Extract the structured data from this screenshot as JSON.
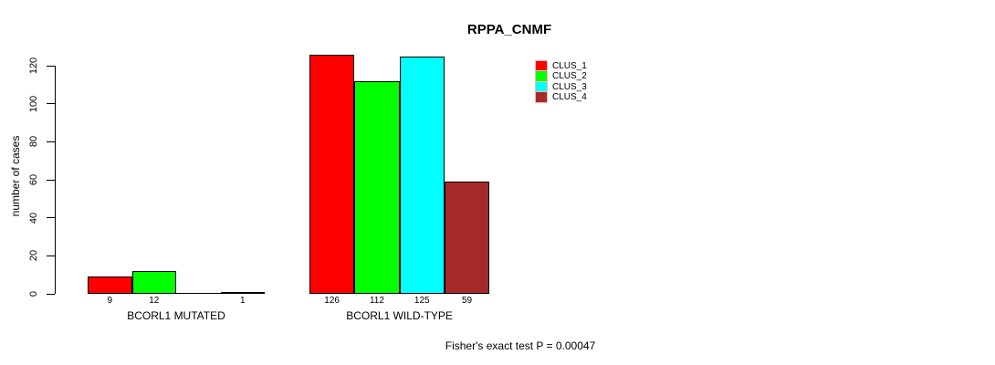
{
  "title": "RPPA_CNMF",
  "y_axis": {
    "label": "number of cases"
  },
  "footer": "Fisher's exact test P = 0.00047",
  "legend": {
    "items": [
      {
        "label": "CLUS_1",
        "color": "#FF0000"
      },
      {
        "label": "CLUS_2",
        "color": "#00FF00"
      },
      {
        "label": "CLUS_3",
        "color": "#00FFFF"
      },
      {
        "label": "CLUS_4",
        "color": "#A52A2A"
      }
    ]
  },
  "chart_data": {
    "type": "bar",
    "title": "RPPA_CNMF",
    "ylabel": "number of cases",
    "xlabel": "",
    "ylim": [
      0,
      130
    ],
    "yticks": [
      0,
      20,
      40,
      60,
      80,
      100,
      120
    ],
    "grid": false,
    "legend_position": "top-right",
    "series": [
      "CLUS_1",
      "CLUS_2",
      "CLUS_3",
      "CLUS_4"
    ],
    "series_colors": [
      "#FF0000",
      "#00FF00",
      "#00FFFF",
      "#A52A2A"
    ],
    "categories": [
      "BCORL1 MUTATED",
      "BCORL1 WILD-TYPE"
    ],
    "groups": [
      {
        "label": "BCORL1 MUTATED",
        "values": [
          9,
          12,
          0,
          1
        ],
        "value_labels": [
          "9",
          "12",
          "",
          "1"
        ]
      },
      {
        "label": "BCORL1 WILD-TYPE",
        "values": [
          126,
          112,
          125,
          59
        ],
        "value_labels": [
          "126",
          "112",
          "125",
          "59"
        ]
      }
    ],
    "annotation": "Fisher's exact test P = 0.00047"
  }
}
